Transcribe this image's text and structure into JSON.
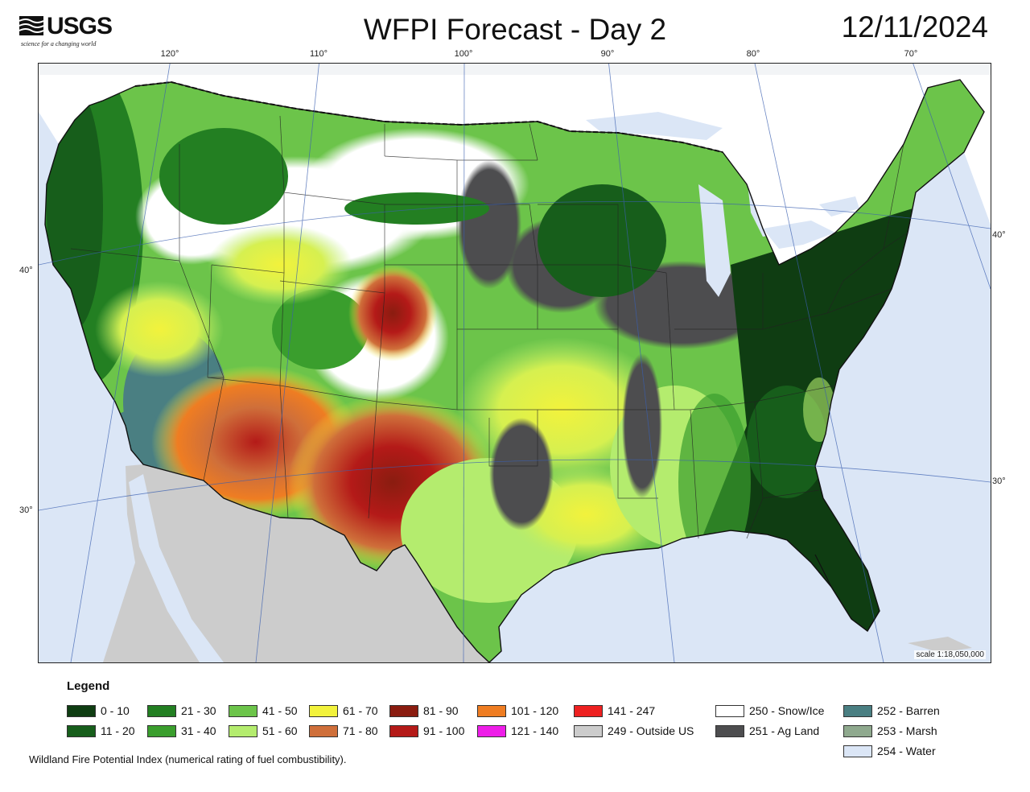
{
  "logo": {
    "name": "USGS",
    "tagline": "science for a changing world"
  },
  "title": "WFPI Forecast - Day 2",
  "date": "12/11/2024",
  "map": {
    "longitude_labels": [
      "120°",
      "110°",
      "100°",
      "90°",
      "80°",
      "70°"
    ],
    "latitude_labels_left": [
      "40°",
      "30°"
    ],
    "latitude_labels_right": [
      "40°",
      "30°"
    ],
    "scale": "scale 1:18,050,000"
  },
  "legend": {
    "title": "Legend",
    "items": [
      {
        "label": "0 - 10",
        "color": "#0f3d12"
      },
      {
        "label": "11 - 20",
        "color": "#175e1b"
      },
      {
        "label": "21 - 30",
        "color": "#237f22"
      },
      {
        "label": "31 - 40",
        "color": "#3a9e2d"
      },
      {
        "label": "41 - 50",
        "color": "#6cc44a"
      },
      {
        "label": "51 - 60",
        "color": "#b4ec6e"
      },
      {
        "label": "61 - 70",
        "color": "#f2f23c"
      },
      {
        "label": "71 - 80",
        "color": "#cf6f3a"
      },
      {
        "label": "81 - 90",
        "color": "#8a1c10"
      },
      {
        "label": "91 - 100",
        "color": "#b41a18"
      },
      {
        "label": "101 - 120",
        "color": "#ef7d22"
      },
      {
        "label": "121 - 140",
        "color": "#ee1ee8"
      },
      {
        "label": "141 - 247",
        "color": "#ee2121"
      },
      {
        "label": "249 - Outside US",
        "color": "#cccccc"
      },
      {
        "label": "250 - Snow/Ice",
        "color": "#ffffff"
      },
      {
        "label": "251 - Ag Land",
        "color": "#4d4d4f"
      },
      {
        "label": "252 - Barren",
        "color": "#4a7f82"
      },
      {
        "label": "253 - Marsh",
        "color": "#8fa98e"
      },
      {
        "label": "254 - Water",
        "color": "#dbe6f6"
      }
    ]
  },
  "footnote": "Wildland Fire Potential Index (numerical rating of fuel combustibility)."
}
